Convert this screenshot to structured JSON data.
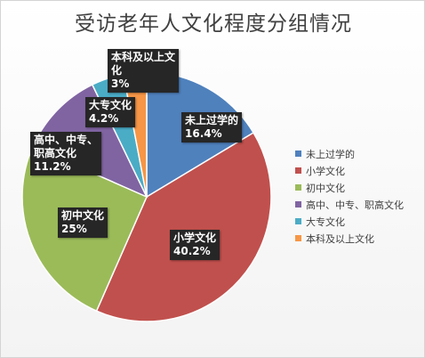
{
  "chart_data": {
    "type": "pie",
    "title": "受访老年人文化程度分组情况",
    "slices": [
      {
        "name": "未上过学的",
        "value": 16.4,
        "label": "16.4%",
        "color": "#4F81BD"
      },
      {
        "name": "小学文化",
        "value": 40.2,
        "label": "40.2%",
        "color": "#C0504D"
      },
      {
        "name": "初中文化",
        "value": 25,
        "label": "25%",
        "color": "#9BBB59"
      },
      {
        "name": "高中、中专、职高文化",
        "value": 11.2,
        "label": "11.2%",
        "color": "#8064A2"
      },
      {
        "name": "大专文化",
        "value": 4.2,
        "label": "4.2%",
        "color": "#4BACC6"
      },
      {
        "name": "本科及以上文化",
        "value": 3,
        "label": "3%",
        "color": "#F79646"
      }
    ],
    "data_label_lines": [
      [
        "未上过学的"
      ],
      [
        "小学文化"
      ],
      [
        "初中文化"
      ],
      [
        "高中、中专、",
        "职高文化"
      ],
      [
        "大专文化"
      ],
      [
        "本科及以上文",
        "化"
      ]
    ],
    "legend_position": "right",
    "start_angle": "12 o'clock",
    "direction": "clockwise"
  }
}
